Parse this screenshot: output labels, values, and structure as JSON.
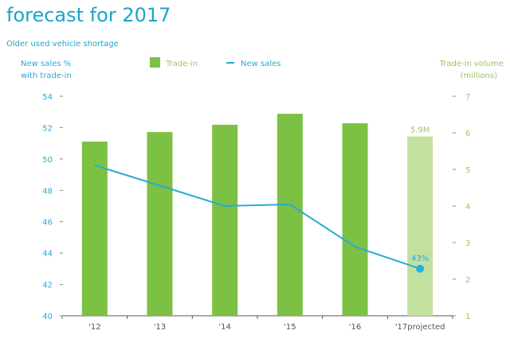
{
  "title": "forecast for 2017",
  "subtitle": "Older used vehicle shortage",
  "colors": {
    "title": "#1ea4c9",
    "bar": "#7cc143",
    "bar_projected": "#c2e09e",
    "line": "#2aa9d6",
    "right_axis": "#9fc366",
    "left_axis": "#2aa9d6"
  },
  "chart_data": {
    "type": "bar+line",
    "categories": [
      "'12",
      "'13",
      "'14",
      "'15",
      "'16",
      "'17projected"
    ],
    "left_axis": {
      "label_line1": "New sales %",
      "label_line2": "with trade-in",
      "range": [
        40,
        54
      ],
      "ticks": [
        40,
        42,
        44,
        46,
        48,
        50,
        52,
        54
      ]
    },
    "right_axis": {
      "label_line1": "Trade-in volume",
      "label_line2": "(millions)",
      "range": [
        1,
        7
      ],
      "ticks": [
        1,
        2,
        3,
        4,
        5,
        6,
        7
      ]
    },
    "legend": {
      "placement": "top",
      "items": [
        "Trade-in",
        "New sales"
      ]
    },
    "series": [
      {
        "name": "Trade-in",
        "type": "bar",
        "axis": "right",
        "values": [
          5.76,
          6.02,
          6.22,
          6.52,
          6.26,
          5.9
        ],
        "projected_index": 5
      },
      {
        "name": "New sales",
        "type": "line",
        "axis": "left",
        "values": [
          49.6,
          48.3,
          47.0,
          47.1,
          44.4,
          43
        ]
      }
    ],
    "annotations": {
      "bar_label": "5.9M",
      "line_label": "43%"
    },
    "grid": false
  }
}
